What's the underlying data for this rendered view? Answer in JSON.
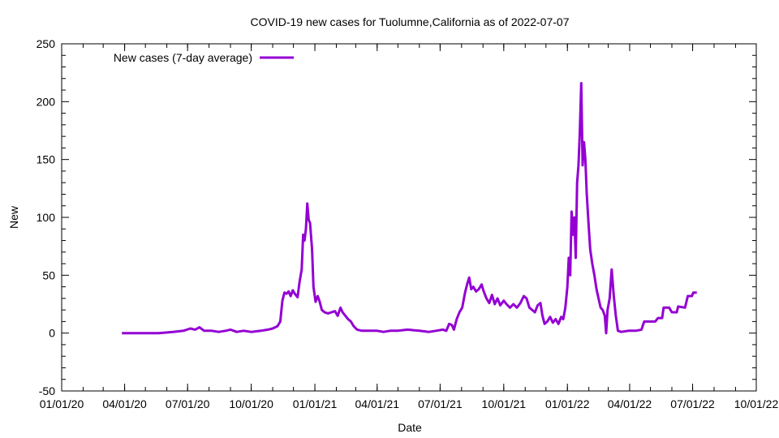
{
  "chart_data": {
    "type": "line",
    "title": "COVID-19 new cases for Tuolumne,California as of 2022-07-07",
    "xlabel": "Date",
    "ylabel": "New",
    "xlim": [
      "2020-01-01",
      "2022-10-01"
    ],
    "ylim": [
      -50,
      250
    ],
    "x_ticks": [
      "01/01/20",
      "04/01/20",
      "07/01/20",
      "10/01/20",
      "01/01/21",
      "04/01/21",
      "07/01/21",
      "10/01/21",
      "01/01/22",
      "04/01/22",
      "07/01/22",
      "10/01/22"
    ],
    "y_ticks": [
      -50,
      0,
      50,
      100,
      150,
      200,
      250
    ],
    "grid": false,
    "legend_position": "top-left",
    "series": [
      {
        "name": "New cases (7-day average)",
        "color": "#9400d3",
        "points": [
          [
            "2020-03-28",
            0
          ],
          [
            "2020-04-15",
            0
          ],
          [
            "2020-05-01",
            0
          ],
          [
            "2020-05-20",
            0
          ],
          [
            "2020-06-10",
            1
          ],
          [
            "2020-06-25",
            2
          ],
          [
            "2020-07-05",
            4
          ],
          [
            "2020-07-12",
            3
          ],
          [
            "2020-07-18",
            5
          ],
          [
            "2020-07-25",
            2
          ],
          [
            "2020-08-05",
            2
          ],
          [
            "2020-08-15",
            1
          ],
          [
            "2020-08-25",
            2
          ],
          [
            "2020-09-01",
            3
          ],
          [
            "2020-09-10",
            1
          ],
          [
            "2020-09-20",
            2
          ],
          [
            "2020-10-01",
            1
          ],
          [
            "2020-10-15",
            2
          ],
          [
            "2020-10-25",
            3
          ],
          [
            "2020-11-01",
            4
          ],
          [
            "2020-11-08",
            6
          ],
          [
            "2020-11-12",
            10
          ],
          [
            "2020-11-15",
            28
          ],
          [
            "2020-11-18",
            35
          ],
          [
            "2020-11-21",
            34
          ],
          [
            "2020-11-24",
            36
          ],
          [
            "2020-11-27",
            32
          ],
          [
            "2020-11-30",
            37
          ],
          [
            "2020-12-03",
            34
          ],
          [
            "2020-12-07",
            31
          ],
          [
            "2020-12-10",
            45
          ],
          [
            "2020-12-13",
            55
          ],
          [
            "2020-12-15",
            85
          ],
          [
            "2020-12-17",
            80
          ],
          [
            "2020-12-19",
            90
          ],
          [
            "2020-12-21",
            112
          ],
          [
            "2020-12-23",
            98
          ],
          [
            "2020-12-25",
            95
          ],
          [
            "2020-12-28",
            72
          ],
          [
            "2020-12-30",
            40
          ],
          [
            "2021-01-02",
            27
          ],
          [
            "2021-01-05",
            32
          ],
          [
            "2021-01-08",
            27
          ],
          [
            "2021-01-11",
            20
          ],
          [
            "2021-01-15",
            18
          ],
          [
            "2021-01-20",
            17
          ],
          [
            "2021-01-25",
            18
          ],
          [
            "2021-01-30",
            19
          ],
          [
            "2021-02-03",
            15
          ],
          [
            "2021-02-07",
            22
          ],
          [
            "2021-02-10",
            18
          ],
          [
            "2021-02-14",
            15
          ],
          [
            "2021-02-18",
            12
          ],
          [
            "2021-02-22",
            10
          ],
          [
            "2021-02-26",
            6
          ],
          [
            "2021-03-03",
            3
          ],
          [
            "2021-03-10",
            2
          ],
          [
            "2021-03-20",
            2
          ],
          [
            "2021-04-01",
            2
          ],
          [
            "2021-04-10",
            1
          ],
          [
            "2021-04-20",
            2
          ],
          [
            "2021-05-01",
            2
          ],
          [
            "2021-05-15",
            3
          ],
          [
            "2021-06-01",
            2
          ],
          [
            "2021-06-15",
            1
          ],
          [
            "2021-06-25",
            2
          ],
          [
            "2021-07-05",
            3
          ],
          [
            "2021-07-10",
            2
          ],
          [
            "2021-07-14",
            8
          ],
          [
            "2021-07-18",
            7
          ],
          [
            "2021-07-21",
            3
          ],
          [
            "2021-07-25",
            12
          ],
          [
            "2021-07-29",
            18
          ],
          [
            "2021-08-02",
            22
          ],
          [
            "2021-08-06",
            35
          ],
          [
            "2021-08-09",
            42
          ],
          [
            "2021-08-12",
            48
          ],
          [
            "2021-08-15",
            38
          ],
          [
            "2021-08-18",
            40
          ],
          [
            "2021-08-22",
            36
          ],
          [
            "2021-08-26",
            38
          ],
          [
            "2021-08-30",
            42
          ],
          [
            "2021-09-02",
            36
          ],
          [
            "2021-09-06",
            30
          ],
          [
            "2021-09-10",
            26
          ],
          [
            "2021-09-14",
            33
          ],
          [
            "2021-09-18",
            25
          ],
          [
            "2021-09-22",
            30
          ],
          [
            "2021-09-26",
            24
          ],
          [
            "2021-10-01",
            28
          ],
          [
            "2021-10-05",
            25
          ],
          [
            "2021-10-10",
            22
          ],
          [
            "2021-10-15",
            25
          ],
          [
            "2021-10-20",
            22
          ],
          [
            "2021-10-25",
            26
          ],
          [
            "2021-10-30",
            32
          ],
          [
            "2021-11-03",
            30
          ],
          [
            "2021-11-07",
            22
          ],
          [
            "2021-11-11",
            20
          ],
          [
            "2021-11-15",
            18
          ],
          [
            "2021-11-19",
            24
          ],
          [
            "2021-11-23",
            26
          ],
          [
            "2021-11-26",
            15
          ],
          [
            "2021-11-29",
            8
          ],
          [
            "2021-12-03",
            10
          ],
          [
            "2021-12-07",
            14
          ],
          [
            "2021-12-11",
            9
          ],
          [
            "2021-12-15",
            12
          ],
          [
            "2021-12-19",
            8
          ],
          [
            "2021-12-23",
            14
          ],
          [
            "2021-12-26",
            12
          ],
          [
            "2021-12-29",
            22
          ],
          [
            "2022-01-01",
            40
          ],
          [
            "2022-01-03",
            65
          ],
          [
            "2022-01-05",
            50
          ],
          [
            "2022-01-07",
            105
          ],
          [
            "2022-01-09",
            85
          ],
          [
            "2022-01-11",
            100
          ],
          [
            "2022-01-13",
            65
          ],
          [
            "2022-01-15",
            130
          ],
          [
            "2022-01-17",
            145
          ],
          [
            "2022-01-19",
            175
          ],
          [
            "2022-01-21",
            216
          ],
          [
            "2022-01-23",
            145
          ],
          [
            "2022-01-25",
            165
          ],
          [
            "2022-01-27",
            150
          ],
          [
            "2022-01-29",
            120
          ],
          [
            "2022-02-01",
            90
          ],
          [
            "2022-02-03",
            72
          ],
          [
            "2022-02-06",
            60
          ],
          [
            "2022-02-09",
            50
          ],
          [
            "2022-02-12",
            38
          ],
          [
            "2022-02-15",
            30
          ],
          [
            "2022-02-18",
            22
          ],
          [
            "2022-02-21",
            20
          ],
          [
            "2022-02-24",
            15
          ],
          [
            "2022-02-26",
            0
          ],
          [
            "2022-02-28",
            20
          ],
          [
            "2022-03-03",
            30
          ],
          [
            "2022-03-06",
            55
          ],
          [
            "2022-03-09",
            32
          ],
          [
            "2022-03-12",
            15
          ],
          [
            "2022-03-15",
            2
          ],
          [
            "2022-03-20",
            1
          ],
          [
            "2022-03-30",
            2
          ],
          [
            "2022-04-10",
            2
          ],
          [
            "2022-04-18",
            3
          ],
          [
            "2022-04-22",
            10
          ],
          [
            "2022-05-01",
            10
          ],
          [
            "2022-05-08",
            10
          ],
          [
            "2022-05-12",
            13
          ],
          [
            "2022-05-18",
            13
          ],
          [
            "2022-05-20",
            22
          ],
          [
            "2022-05-28",
            22
          ],
          [
            "2022-06-01",
            18
          ],
          [
            "2022-06-08",
            18
          ],
          [
            "2022-06-10",
            23
          ],
          [
            "2022-06-20",
            22
          ],
          [
            "2022-06-24",
            32
          ],
          [
            "2022-06-30",
            32
          ],
          [
            "2022-07-02",
            35
          ],
          [
            "2022-07-07",
            35
          ]
        ]
      }
    ]
  }
}
